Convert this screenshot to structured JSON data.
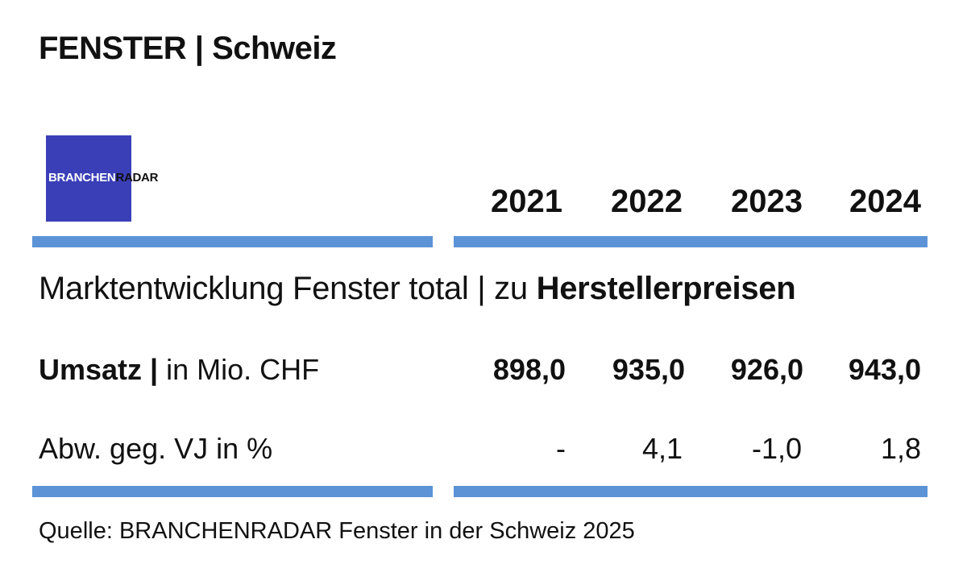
{
  "title": "FENSTER | Schweiz",
  "logo": {
    "part1": "BRANCHEN",
    "part2": "RADAR"
  },
  "chart_data": {
    "type": "table",
    "title": "FENSTER | Schweiz",
    "subtitle_regular": "Marktentwicklung Fenster total | zu ",
    "subtitle_bold": "Herstellerpreisen",
    "columns": [
      "2021",
      "2022",
      "2023",
      "2024"
    ],
    "rows": [
      {
        "label_bold": "Umsatz |",
        "label_regular": " in Mio. CHF",
        "values": [
          "898,0",
          "935,0",
          "926,0",
          "943,0"
        ]
      },
      {
        "label_bold": "",
        "label_regular": "Abw. geg. VJ in %",
        "values": [
          "-",
          "4,1",
          "-1,0",
          "1,8"
        ]
      }
    ],
    "source": "Quelle: BRANCHENRADAR Fenster in der Schweiz 2025",
    "colors": {
      "rule": "#5b93d6",
      "logo": "#3a3fb8"
    }
  }
}
